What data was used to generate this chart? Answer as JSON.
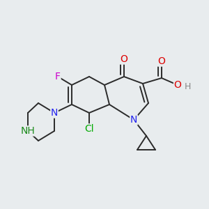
{
  "background_color": "#e8ecee",
  "bond_color": "#2a2a2a",
  "bond_width": 1.4,
  "figsize": [
    3.0,
    3.0
  ],
  "dpi": 100,
  "colors": {
    "O": "#dd0000",
    "F": "#cc00cc",
    "Cl": "#00aa00",
    "N": "#2222ee",
    "NH": "#1a8a1a",
    "H_gray": "#888888"
  }
}
